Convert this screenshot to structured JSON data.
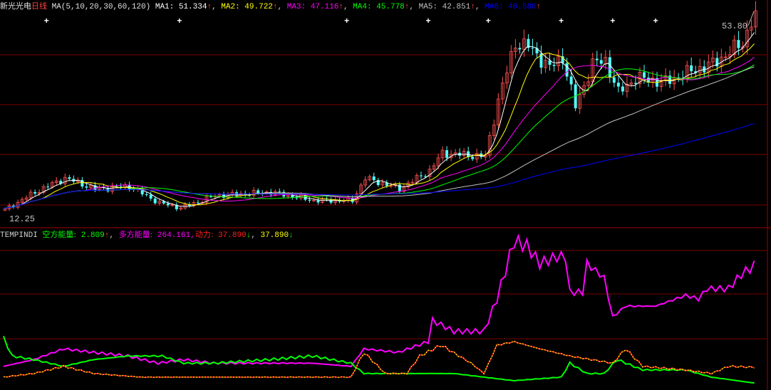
{
  "header": {
    "stock_name": "新光光电",
    "period": "日线",
    "ma_spec": "MA(5,10,20,30,60,120)",
    "ma": [
      {
        "label": "MA1:",
        "value": "51.334",
        "arrow": "↑",
        "color": "#ffffff"
      },
      {
        "label": "MA2:",
        "value": "49.722",
        "arrow": "↑",
        "color": "#ffff00"
      },
      {
        "label": "MA3:",
        "value": "47.116",
        "arrow": "↑",
        "color": "#ff00ff"
      },
      {
        "label": "MA4:",
        "value": "45.778",
        "arrow": "↑",
        "color": "#00ff00"
      },
      {
        "label": "MA5:",
        "value": "42.851",
        "arrow": "↑",
        "color": "#c0c0c0"
      },
      {
        "label": "MA6:",
        "value": "40.588",
        "arrow": "↑",
        "color": "#0000ff"
      }
    ]
  },
  "indicator_header": {
    "name": "TEMPINDI",
    "items": [
      {
        "label": "空方能量:",
        "value": "2.809",
        "arrow": "↑",
        "color": "#00ff00",
        "arrow_color": "#ff4040"
      },
      {
        "label": "多方能量:",
        "value": "264.161,",
        "arrow": "",
        "color": "#ff00ff",
        "arrow_color": ""
      },
      {
        "label": "动力:",
        "value": "37.890",
        "arrow": "↓",
        "color": "#ff2020",
        "arrow_color": "#00ff00"
      },
      {
        "label": "",
        "value": "37.890",
        "arrow": "↓",
        "color": "#ffff00",
        "arrow_color": "#00ff00"
      }
    ]
  },
  "colors": {
    "up": "#ff5050",
    "down": "#54fcfc",
    "grid": "#7a0000",
    "background": "#000000"
  },
  "chart_data": [
    {
      "type": "candlestick",
      "title": "",
      "bar_count": 176,
      "price_range": [
        12.25,
        53.8
      ],
      "high_label": "53.80",
      "low_label": "12.25",
      "close_keypoints": [
        [
          0,
          13.0
        ],
        [
          7,
          16.6
        ],
        [
          14,
          19.5
        ],
        [
          21,
          17.3
        ],
        [
          29,
          17.8
        ],
        [
          36,
          14.4
        ],
        [
          41,
          13.4
        ],
        [
          49,
          15.9
        ],
        [
          62,
          16.6
        ],
        [
          72,
          14.9
        ],
        [
          81,
          14.9
        ],
        [
          84,
          19.5
        ],
        [
          92,
          17.3
        ],
        [
          99,
          21.0
        ],
        [
          102,
          24.6
        ],
        [
          112,
          23.9
        ],
        [
          115,
          35.5
        ],
        [
          119,
          47.2
        ],
        [
          122,
          46.5
        ],
        [
          127,
          42.1
        ],
        [
          130,
          44.3
        ],
        [
          133,
          34.1
        ],
        [
          137,
          42.9
        ],
        [
          140,
          43.6
        ],
        [
          143,
          37.0
        ],
        [
          147,
          40.0
        ],
        [
          154,
          39.2
        ],
        [
          160,
          41.4
        ],
        [
          165,
          42.9
        ],
        [
          172,
          47.2
        ],
        [
          175,
          53.8
        ]
      ],
      "ma_periods": [
        5,
        10,
        20,
        30,
        60,
        120
      ],
      "signal_marker_bars": [
        10,
        41,
        80,
        99,
        113,
        130,
        142,
        152
      ],
      "grid": true
    },
    {
      "type": "line",
      "title": "TEMPINDI",
      "yrange": [
        0,
        320
      ],
      "series": [
        {
          "name": "多方能量",
          "color": "#ff00ff",
          "points": [
            [
              0,
              40
            ],
            [
              7,
              55
            ],
            [
              14,
              79
            ],
            [
              21,
              71
            ],
            [
              29,
              63
            ],
            [
              36,
              47
            ],
            [
              42,
              55
            ],
            [
              49,
              47
            ],
            [
              62,
              47
            ],
            [
              72,
              47
            ],
            [
              81,
              40
            ],
            [
              84,
              79
            ],
            [
              92,
              71
            ],
            [
              99,
              95
            ],
            [
              100,
              142
            ],
            [
              105,
              118
            ],
            [
              112,
              118
            ],
            [
              115,
              190
            ],
            [
              117,
              253
            ],
            [
              119,
              319
            ],
            [
              122,
              308
            ],
            [
              125,
              269
            ],
            [
              129,
              284
            ],
            [
              131,
              284
            ],
            [
              132,
              205
            ],
            [
              135,
              205
            ],
            [
              136,
              269
            ],
            [
              140,
              237
            ],
            [
              142,
              150
            ],
            [
              145,
              174
            ],
            [
              152,
              174
            ],
            [
              159,
              198
            ],
            [
              162,
              190
            ],
            [
              164,
              213
            ],
            [
              169,
              213
            ],
            [
              172,
              245
            ],
            [
              175,
              264.161
            ]
          ]
        },
        {
          "name": "空方能量",
          "color": "#00ff00",
          "points": [
            [
              0,
              103
            ],
            [
              2,
              63
            ],
            [
              7,
              55
            ],
            [
              14,
              40
            ],
            [
              21,
              55
            ],
            [
              29,
              63
            ],
            [
              37,
              63
            ],
            [
              42,
              47
            ],
            [
              49,
              47
            ],
            [
              62,
              55
            ],
            [
              72,
              63
            ],
            [
              81,
              47
            ],
            [
              84,
              24
            ],
            [
              92,
              24
            ],
            [
              105,
              24
            ],
            [
              112,
              16
            ],
            [
              119,
              8
            ],
            [
              130,
              16
            ],
            [
              132,
              47
            ],
            [
              136,
              24
            ],
            [
              140,
              24
            ],
            [
              143,
              55
            ],
            [
              149,
              32
            ],
            [
              159,
              32
            ],
            [
              165,
              16
            ],
            [
              175,
              2.809
            ]
          ]
        },
        {
          "name": "动力",
          "color": "#ff2020",
          "points": [
            [
              0,
              16
            ],
            [
              7,
              24
            ],
            [
              14,
              40
            ],
            [
              21,
              24
            ],
            [
              32,
              16
            ],
            [
              49,
              16
            ],
            [
              66,
              16
            ],
            [
              81,
              16
            ],
            [
              84,
              71
            ],
            [
              89,
              24
            ],
            [
              94,
              24
            ],
            [
              97,
              63
            ],
            [
              102,
              87
            ],
            [
              109,
              47
            ],
            [
              112,
              24
            ],
            [
              115,
              87
            ],
            [
              119,
              95
            ],
            [
              125,
              79
            ],
            [
              132,
              63
            ],
            [
              142,
              47
            ],
            [
              145,
              79
            ],
            [
              149,
              40
            ],
            [
              159,
              32
            ],
            [
              165,
              24
            ],
            [
              169,
              40
            ],
            [
              175,
              37.89
            ]
          ]
        }
      ],
      "grid": true
    }
  ]
}
